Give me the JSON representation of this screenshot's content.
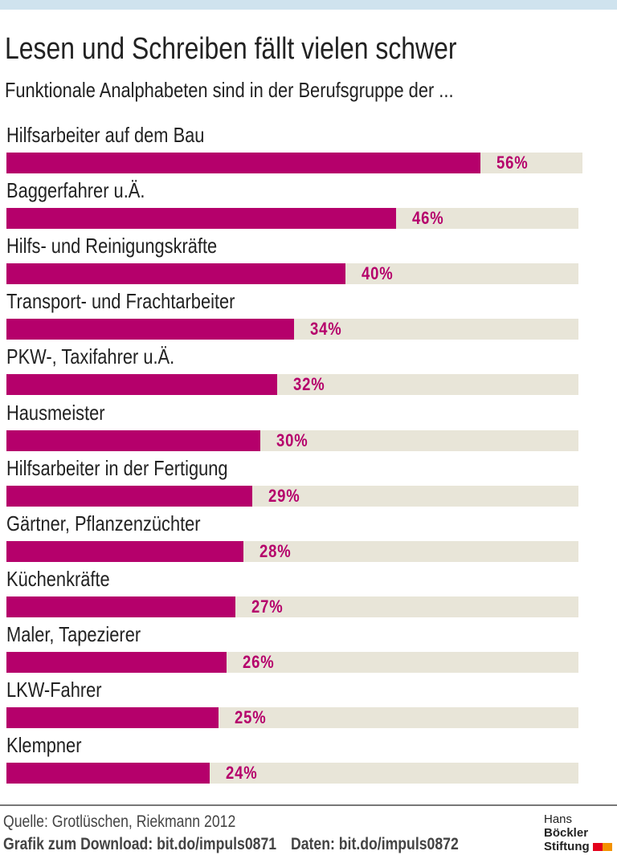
{
  "colors": {
    "bar": "#b5006b",
    "track": "#e8e5d8",
    "top_band": "#cfe3ee",
    "logo_red": "#e3001b",
    "logo_orange": "#f39200"
  },
  "chart_data": {
    "type": "bar",
    "orientation": "horizontal",
    "title": "Lesen und Schreiben fällt vielen schwer",
    "subtitle": "Funktionale Analphabeten sind in der Berufsgruppe der ...",
    "categories": [
      "Hilfsarbeiter auf dem Bau",
      "Baggerfahrer u.Ä.",
      "Hilfs- und Reinigungskräfte",
      "Transport- und Frachtarbeiter",
      "PKW-, Taxifahrer u.Ä.",
      "Hausmeister",
      "Hilfsarbeiter in der Fertigung",
      "Gärtner, Pflanzenzüchter",
      "Küchenkräfte",
      "Maler, Tapezierer",
      "LKW-Fahrer",
      "Klempner"
    ],
    "values": [
      56,
      46,
      40,
      34,
      32,
      30,
      29,
      28,
      27,
      26,
      25,
      24
    ],
    "value_labels": [
      "56%",
      "46%",
      "40%",
      "34%",
      "32%",
      "30%",
      "29%",
      "28%",
      "27%",
      "26%",
      "25%",
      "24%"
    ],
    "unit": "%",
    "xlim": [
      0,
      68
    ]
  },
  "footer": {
    "source": "Quelle: Grotlüschen, Riekmann 2012",
    "download": "Grafik zum Download: bit.do/impuls0871",
    "data": "Daten: bit.do/impuls0872",
    "logo_line1_a": "Hans",
    "logo_line1_b": "Böckler",
    "logo_line2": "Stiftung"
  }
}
